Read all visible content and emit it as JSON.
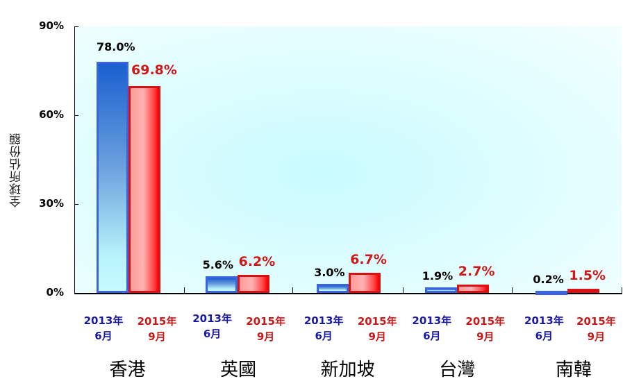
{
  "chart_data": {
    "type": "bar",
    "title": "",
    "xlabel": "",
    "ylabel": "全球所佔份額",
    "ylim": [
      0,
      90
    ],
    "yticks": [
      "0%",
      "30%",
      "60%",
      "90%"
    ],
    "grid": false,
    "legend": "none (series labeled under each bar)",
    "categories": [
      "香港",
      "英國",
      "新加坡",
      "台灣",
      "南韓"
    ],
    "series": [
      {
        "name": "2013年6月",
        "color": "#2a5fd8",
        "values": [
          78.0,
          5.6,
          3.0,
          1.9,
          0.2
        ],
        "labels": [
          "78.0%",
          "5.6%",
          "3.0%",
          "1.9%",
          "0.2%"
        ]
      },
      {
        "name": "2015年9月",
        "color": "#e01818",
        "values": [
          69.8,
          6.2,
          6.7,
          2.7,
          1.5
        ],
        "labels": [
          "69.8%",
          "6.2%",
          "6.7%",
          "2.7%",
          "1.5%"
        ]
      }
    ]
  },
  "axis": {
    "ytitle": "全球所佔份額",
    "yticks": [
      {
        "label": "90%",
        "value": 90
      },
      {
        "label": "60%",
        "value": 60
      },
      {
        "label": "30%",
        "value": 30
      },
      {
        "label": "0%",
        "value": 0
      }
    ]
  },
  "series_labels": {
    "s1_line1": "2013年",
    "s1_line2": "6月",
    "s2_line1": "2015年",
    "s2_line2": "9月"
  },
  "groups": [
    {
      "name": "香港",
      "v1": 78.0,
      "v2": 69.8,
      "l1": "78.0%",
      "l2": "69.8%"
    },
    {
      "name": "英國",
      "v1": 5.6,
      "v2": 6.2,
      "l1": "5.6%",
      "l2": "6.2%"
    },
    {
      "name": "新加坡",
      "v1": 3.0,
      "v2": 6.7,
      "l1": "3.0%",
      "l2": "6.7%"
    },
    {
      "name": "台灣",
      "v1": 1.9,
      "v2": 2.7,
      "l1": "1.9%",
      "l2": "2.7%"
    },
    {
      "name": "南韓",
      "v1": 0.2,
      "v2": 1.5,
      "l1": "0.2%",
      "l2": "1.5%"
    }
  ]
}
